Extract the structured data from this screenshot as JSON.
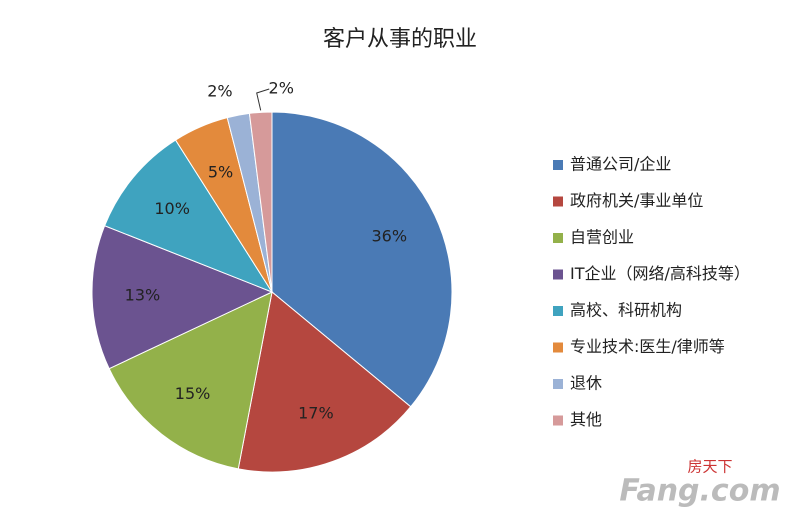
{
  "chart_data": {
    "type": "pie",
    "title": "客户从事的职业",
    "categories": [
      "普通公司/企业",
      "政府机关/事业单位",
      "自营创业",
      "IT企业（网络/高科技等）",
      "高校、科研机构",
      "专业技术:医生/律师等",
      "退休",
      "其他"
    ],
    "values": [
      36,
      17,
      15,
      13,
      10,
      5,
      2,
      2
    ],
    "value_labels": [
      "36%",
      "17%",
      "15%",
      "13%",
      "10%",
      "5%",
      "2%",
      "2%"
    ],
    "colors": [
      "#4a7ab5",
      "#b5473f",
      "#93b14a",
      "#6b5390",
      "#3fa3bf",
      "#e38a3c",
      "#9bb2d6",
      "#d69a9a"
    ],
    "legend": "right",
    "watermark": [
      "房天下",
      "Fang.com"
    ]
  }
}
